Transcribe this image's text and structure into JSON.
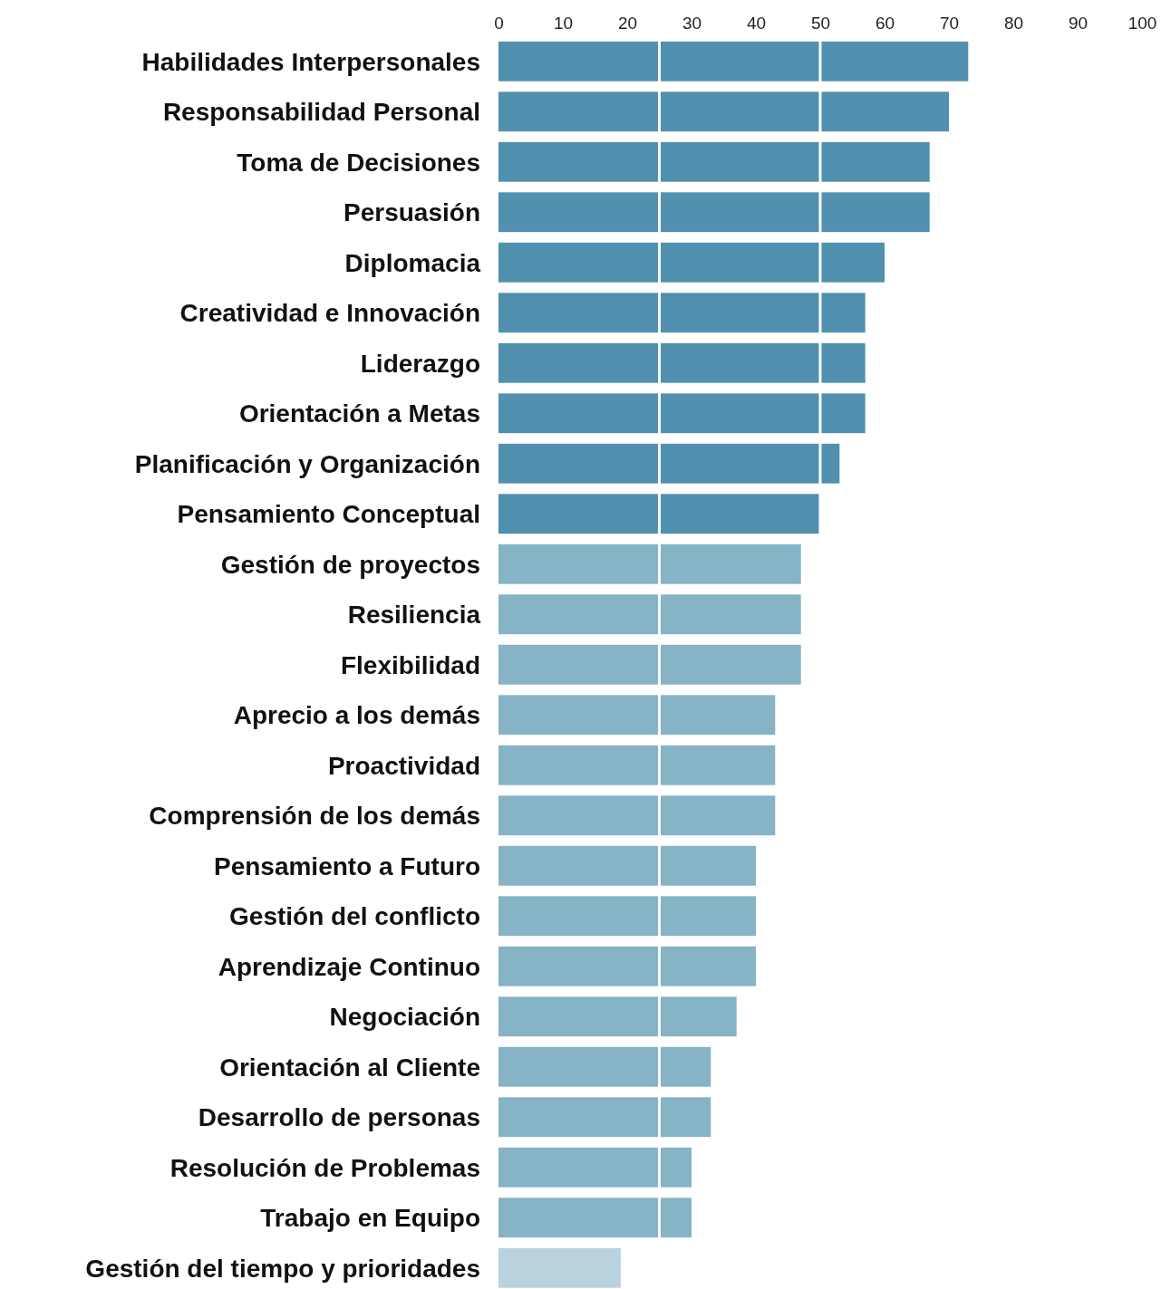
{
  "chart_data": {
    "type": "bar",
    "orientation": "horizontal",
    "categories": [
      "Habilidades Interpersonales",
      "Responsabilidad Personal",
      "Toma de Decisiones",
      "Persuasión",
      "Diplomacia",
      "Creatividad e Innovación",
      "Liderazgo",
      "Orientación a Metas",
      "Planificación y Organización",
      "Pensamiento Conceptual",
      "Gestión de proyectos",
      "Resiliencia",
      "Flexibilidad",
      "Aprecio a los demás",
      "Proactividad",
      "Comprensión de los demás",
      "Pensamiento a Futuro",
      "Gestión del conflicto",
      "Aprendizaje Continuo",
      "Negociación",
      "Orientación al Cliente",
      "Desarrollo de personas",
      "Resolución de Problemas",
      "Trabajo en Equipo",
      "Gestión del tiempo y prioridades"
    ],
    "values": [
      73,
      70,
      67,
      67,
      60,
      57,
      57,
      57,
      53,
      50,
      47,
      47,
      47,
      43,
      43,
      43,
      40,
      40,
      40,
      37,
      33,
      33,
      30,
      30,
      19
    ],
    "colors": [
      "#5190ae",
      "#5190ae",
      "#5190ae",
      "#5190ae",
      "#5190ae",
      "#5190ae",
      "#5190ae",
      "#5190ae",
      "#5190ae",
      "#5190ae",
      "#86b3c6",
      "#86b3c6",
      "#86b3c6",
      "#86b3c6",
      "#86b3c6",
      "#86b3c6",
      "#86b3c6",
      "#86b3c6",
      "#86b3c6",
      "#86b3c6",
      "#86b3c6",
      "#86b3c6",
      "#86b3c6",
      "#86b3c6",
      "#b9d3de"
    ],
    "xlim": [
      0,
      100
    ],
    "xticks": [
      0,
      10,
      20,
      30,
      40,
      50,
      60,
      70,
      80,
      90,
      100
    ],
    "ref_lines": [
      {
        "axis": "x",
        "value": 25,
        "color": "#ffffff"
      },
      {
        "axis": "x",
        "value": 50,
        "color": "#ffffff"
      }
    ]
  }
}
